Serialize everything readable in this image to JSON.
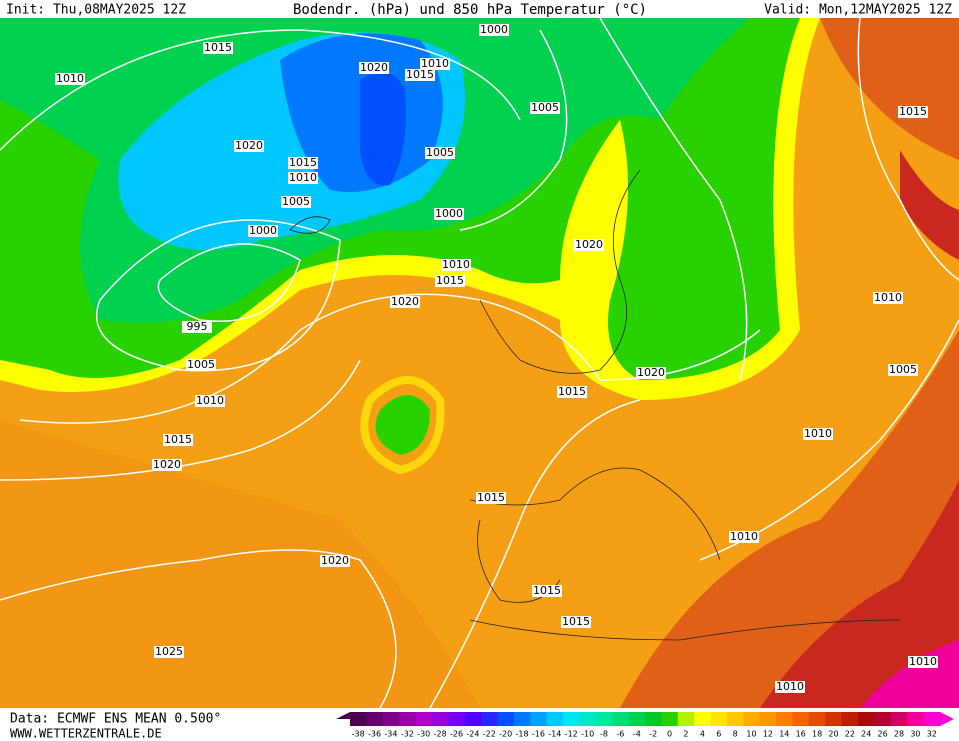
{
  "header": {
    "init": "Init: Thu,08MAY2025 12Z",
    "title": "Bodendr. (hPa) und 850 hPa Temperatur (°C)",
    "valid": "Valid: Mon,12MAY2025 12Z"
  },
  "footer": {
    "source": "Data: ECMWF ENS MEAN 0.500°",
    "site": "WWW.WETTERZENTRALE.DE"
  },
  "isobar_labels": [
    "1015",
    "1010",
    "1020",
    "1010",
    "1015",
    "1005",
    "1020",
    "1015",
    "1010",
    "1005",
    "1005",
    "1000",
    "1000",
    "1020",
    "1010",
    "1015",
    "995",
    "1020",
    "1010",
    "1005",
    "1010",
    "1015",
    "1020",
    "1015",
    "1020",
    "1010",
    "1005",
    "1015",
    "1015",
    "1010",
    "1020",
    "1015",
    "1015",
    "1025",
    "1010",
    "1010",
    "1000"
  ],
  "colorbar": {
    "ticks": [
      -38,
      -36,
      -34,
      -32,
      -30,
      -28,
      -26,
      -24,
      -22,
      -20,
      -18,
      -16,
      -14,
      -12,
      -10,
      -8,
      -6,
      -4,
      -2,
      0,
      2,
      4,
      6,
      8,
      10,
      12,
      14,
      16,
      18,
      20,
      22,
      24,
      26,
      28,
      30,
      32
    ],
    "colors": [
      "#4b0050",
      "#64006e",
      "#80008c",
      "#9a00aa",
      "#b400c8",
      "#9600dc",
      "#7800f0",
      "#5000ff",
      "#2828ff",
      "#0050ff",
      "#0078ff",
      "#00a0ff",
      "#00c8ff",
      "#00e6f0",
      "#00e6c8",
      "#00e6a0",
      "#00dc78",
      "#00d250",
      "#00c828",
      "#28d200",
      "#b4f000",
      "#ffff00",
      "#ffe600",
      "#ffc800",
      "#ffaa00",
      "#ff9600",
      "#ff7d00",
      "#f56400",
      "#e64b00",
      "#d23200",
      "#be1e00",
      "#aa0a0a",
      "#b40032",
      "#d20064",
      "#f0009b",
      "#ff00d2"
    ]
  }
}
